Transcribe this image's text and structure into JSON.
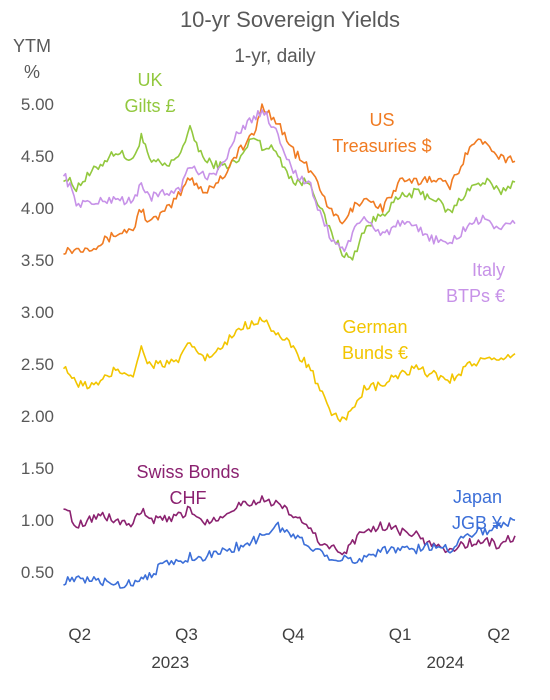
{
  "chart_data": {
    "type": "line",
    "title": "10-yr Sovereign Yields",
    "subtitle": "1-yr, daily",
    "ylabel": "YTM",
    "yunit": "%",
    "ylim": [
      0.3,
      5.0
    ],
    "yticks": [
      "5.00",
      "4.50",
      "4.00",
      "3.50",
      "3.00",
      "2.50",
      "2.00",
      "1.50",
      "1.00",
      "0.50"
    ],
    "ytick_values": [
      5.0,
      4.5,
      4.0,
      3.5,
      3.0,
      2.5,
      2.0,
      1.5,
      1.0,
      0.5
    ],
    "xlim": [
      "2023-04-28",
      "2024-05-24"
    ],
    "xticks": [
      {
        "label": "Q2",
        "date": "2023-05-15"
      },
      {
        "label": "Q3",
        "date": "2023-08-15"
      },
      {
        "label": "Q4",
        "date": "2023-11-15"
      },
      {
        "label": "Q1",
        "date": "2024-02-15"
      },
      {
        "label": "Q2",
        "date": "2024-05-10"
      }
    ],
    "years": [
      {
        "label": "2023",
        "date": "2023-08-01"
      },
      {
        "label": "2024",
        "date": "2024-03-25"
      }
    ],
    "grid": false,
    "legend": "inline labels",
    "series": [
      {
        "name": "UK Gilts £",
        "label_lines": [
          "UK",
          "Gilts £"
        ],
        "color": "#92c83e",
        "points": [
          [
            "2023-05-01",
            4.3
          ],
          [
            "2023-05-12",
            4.2
          ],
          [
            "2023-05-31",
            4.4
          ],
          [
            "2023-06-15",
            4.55
          ],
          [
            "2023-06-30",
            4.45
          ],
          [
            "2023-07-07",
            4.7
          ],
          [
            "2023-07-14",
            4.45
          ],
          [
            "2023-07-31",
            4.4
          ],
          [
            "2023-08-10",
            4.55
          ],
          [
            "2023-08-18",
            4.75
          ],
          [
            "2023-08-31",
            4.45
          ],
          [
            "2023-09-15",
            4.4
          ],
          [
            "2023-09-29",
            4.45
          ],
          [
            "2023-10-12",
            4.7
          ],
          [
            "2023-10-19",
            4.6
          ],
          [
            "2023-10-31",
            4.55
          ],
          [
            "2023-11-15",
            4.25
          ],
          [
            "2023-11-30",
            4.25
          ],
          [
            "2023-12-08",
            4.0
          ],
          [
            "2023-12-18",
            3.75
          ],
          [
            "2023-12-29",
            3.55
          ],
          [
            "2024-01-05",
            3.5
          ],
          [
            "2024-01-15",
            3.8
          ],
          [
            "2024-01-31",
            3.95
          ],
          [
            "2024-02-15",
            4.1
          ],
          [
            "2024-02-29",
            4.15
          ],
          [
            "2024-03-15",
            4.1
          ],
          [
            "2024-03-29",
            3.95
          ],
          [
            "2024-04-15",
            4.2
          ],
          [
            "2024-04-30",
            4.25
          ],
          [
            "2024-05-10",
            4.15
          ],
          [
            "2024-05-24",
            4.25
          ]
        ]
      },
      {
        "name": "US Treasuries $",
        "label_lines": [
          "US",
          "Treasuries $"
        ],
        "color": "#f07b22",
        "points": [
          [
            "2023-05-01",
            3.6
          ],
          [
            "2023-05-12",
            3.6
          ],
          [
            "2023-05-31",
            3.65
          ],
          [
            "2023-06-15",
            3.75
          ],
          [
            "2023-06-30",
            3.8
          ],
          [
            "2023-07-07",
            4.0
          ],
          [
            "2023-07-14",
            3.85
          ],
          [
            "2023-07-31",
            4.0
          ],
          [
            "2023-08-10",
            4.15
          ],
          [
            "2023-08-18",
            4.3
          ],
          [
            "2023-08-31",
            4.15
          ],
          [
            "2023-09-15",
            4.3
          ],
          [
            "2023-09-29",
            4.55
          ],
          [
            "2023-10-12",
            4.7
          ],
          [
            "2023-10-19",
            4.98
          ],
          [
            "2023-10-31",
            4.85
          ],
          [
            "2023-11-15",
            4.55
          ],
          [
            "2023-11-30",
            4.35
          ],
          [
            "2023-12-08",
            4.2
          ],
          [
            "2023-12-18",
            3.95
          ],
          [
            "2023-12-29",
            3.85
          ],
          [
            "2024-01-05",
            4.0
          ],
          [
            "2024-01-15",
            4.1
          ],
          [
            "2024-01-31",
            4.0
          ],
          [
            "2024-02-15",
            4.25
          ],
          [
            "2024-02-29",
            4.25
          ],
          [
            "2024-03-15",
            4.3
          ],
          [
            "2024-03-29",
            4.2
          ],
          [
            "2024-04-15",
            4.6
          ],
          [
            "2024-04-30",
            4.65
          ],
          [
            "2024-05-10",
            4.5
          ],
          [
            "2024-05-24",
            4.45
          ]
        ]
      },
      {
        "name": "Italy BTPs €",
        "label_lines": [
          "Italy",
          "BTPs €"
        ],
        "color": "#c792e8",
        "points": [
          [
            "2023-05-01",
            4.35
          ],
          [
            "2023-05-12",
            4.05
          ],
          [
            "2023-05-31",
            4.05
          ],
          [
            "2023-06-15",
            4.1
          ],
          [
            "2023-06-30",
            4.05
          ],
          [
            "2023-07-07",
            4.25
          ],
          [
            "2023-07-14",
            4.1
          ],
          [
            "2023-07-31",
            4.15
          ],
          [
            "2023-08-10",
            4.2
          ],
          [
            "2023-08-18",
            4.4
          ],
          [
            "2023-08-31",
            4.3
          ],
          [
            "2023-09-15",
            4.4
          ],
          [
            "2023-09-29",
            4.75
          ],
          [
            "2023-10-12",
            4.85
          ],
          [
            "2023-10-19",
            4.95
          ],
          [
            "2023-10-31",
            4.75
          ],
          [
            "2023-11-15",
            4.35
          ],
          [
            "2023-11-30",
            4.2
          ],
          [
            "2023-12-08",
            3.95
          ],
          [
            "2023-12-18",
            3.7
          ],
          [
            "2023-12-29",
            3.6
          ],
          [
            "2024-01-05",
            3.75
          ],
          [
            "2024-01-15",
            3.9
          ],
          [
            "2024-01-31",
            3.75
          ],
          [
            "2024-02-15",
            3.85
          ],
          [
            "2024-02-29",
            3.8
          ],
          [
            "2024-03-15",
            3.7
          ],
          [
            "2024-03-29",
            3.65
          ],
          [
            "2024-04-15",
            3.85
          ],
          [
            "2024-04-30",
            3.9
          ],
          [
            "2024-05-10",
            3.8
          ],
          [
            "2024-05-24",
            3.85
          ]
        ]
      },
      {
        "name": "German Bunds €",
        "label_lines": [
          "German",
          "Bunds €"
        ],
        "color": "#f2c500",
        "points": [
          [
            "2023-05-01",
            2.5
          ],
          [
            "2023-05-12",
            2.3
          ],
          [
            "2023-05-31",
            2.3
          ],
          [
            "2023-06-15",
            2.45
          ],
          [
            "2023-06-30",
            2.4
          ],
          [
            "2023-07-07",
            2.65
          ],
          [
            "2023-07-14",
            2.5
          ],
          [
            "2023-07-31",
            2.5
          ],
          [
            "2023-08-10",
            2.55
          ],
          [
            "2023-08-18",
            2.7
          ],
          [
            "2023-08-31",
            2.55
          ],
          [
            "2023-09-15",
            2.65
          ],
          [
            "2023-09-29",
            2.85
          ],
          [
            "2023-10-12",
            2.9
          ],
          [
            "2023-10-19",
            2.95
          ],
          [
            "2023-10-31",
            2.8
          ],
          [
            "2023-11-15",
            2.65
          ],
          [
            "2023-11-30",
            2.45
          ],
          [
            "2023-12-08",
            2.25
          ],
          [
            "2023-12-18",
            2.0
          ],
          [
            "2023-12-29",
            1.95
          ],
          [
            "2024-01-05",
            2.1
          ],
          [
            "2024-01-15",
            2.25
          ],
          [
            "2024-01-31",
            2.3
          ],
          [
            "2024-02-15",
            2.4
          ],
          [
            "2024-02-29",
            2.45
          ],
          [
            "2024-03-15",
            2.4
          ],
          [
            "2024-03-29",
            2.35
          ],
          [
            "2024-04-15",
            2.5
          ],
          [
            "2024-04-30",
            2.55
          ],
          [
            "2024-05-10",
            2.5
          ],
          [
            "2024-05-24",
            2.6
          ]
        ]
      },
      {
        "name": "Swiss Bonds CHF",
        "label_lines": [
          "Swiss Bonds",
          "CHF"
        ],
        "color": "#8b2270",
        "points": [
          [
            "2023-05-01",
            1.15
          ],
          [
            "2023-05-12",
            0.95
          ],
          [
            "2023-05-31",
            1.05
          ],
          [
            "2023-06-15",
            1.0
          ],
          [
            "2023-06-30",
            0.95
          ],
          [
            "2023-07-07",
            1.1
          ],
          [
            "2023-07-14",
            1.0
          ],
          [
            "2023-07-31",
            1.0
          ],
          [
            "2023-08-10",
            1.05
          ],
          [
            "2023-08-18",
            1.1
          ],
          [
            "2023-08-31",
            0.98
          ],
          [
            "2023-09-15",
            1.05
          ],
          [
            "2023-09-29",
            1.15
          ],
          [
            "2023-10-12",
            1.18
          ],
          [
            "2023-10-19",
            1.2
          ],
          [
            "2023-10-31",
            1.15
          ],
          [
            "2023-11-15",
            1.05
          ],
          [
            "2023-11-30",
            0.9
          ],
          [
            "2023-12-08",
            0.8
          ],
          [
            "2023-12-18",
            0.72
          ],
          [
            "2023-12-29",
            0.7
          ],
          [
            "2024-01-05",
            0.78
          ],
          [
            "2024-01-15",
            0.9
          ],
          [
            "2024-01-31",
            0.95
          ],
          [
            "2024-02-15",
            0.9
          ],
          [
            "2024-02-29",
            0.85
          ],
          [
            "2024-03-15",
            0.75
          ],
          [
            "2024-03-29",
            0.72
          ],
          [
            "2024-04-15",
            0.78
          ],
          [
            "2024-04-30",
            0.8
          ],
          [
            "2024-05-10",
            0.75
          ],
          [
            "2024-05-24",
            0.85
          ]
        ]
      },
      {
        "name": "Japan JGB ¥",
        "label_lines": [
          "Japan",
          "JGB ¥"
        ],
        "color": "#3c6fd8",
        "points": [
          [
            "2023-05-01",
            0.42
          ],
          [
            "2023-05-12",
            0.42
          ],
          [
            "2023-05-31",
            0.42
          ],
          [
            "2023-06-15",
            0.38
          ],
          [
            "2023-06-30",
            0.4
          ],
          [
            "2023-07-07",
            0.45
          ],
          [
            "2023-07-14",
            0.48
          ],
          [
            "2023-07-31",
            0.6
          ],
          [
            "2023-08-10",
            0.6
          ],
          [
            "2023-08-18",
            0.65
          ],
          [
            "2023-08-31",
            0.65
          ],
          [
            "2023-09-15",
            0.7
          ],
          [
            "2023-09-29",
            0.75
          ],
          [
            "2023-10-12",
            0.8
          ],
          [
            "2023-10-19",
            0.85
          ],
          [
            "2023-10-31",
            0.95
          ],
          [
            "2023-11-15",
            0.85
          ],
          [
            "2023-11-30",
            0.75
          ],
          [
            "2023-12-08",
            0.7
          ],
          [
            "2023-12-18",
            0.65
          ],
          [
            "2023-12-29",
            0.62
          ],
          [
            "2024-01-05",
            0.6
          ],
          [
            "2024-01-15",
            0.65
          ],
          [
            "2024-01-31",
            0.72
          ],
          [
            "2024-02-15",
            0.72
          ],
          [
            "2024-02-29",
            0.72
          ],
          [
            "2024-03-15",
            0.75
          ],
          [
            "2024-03-29",
            0.73
          ],
          [
            "2024-04-15",
            0.88
          ],
          [
            "2024-04-30",
            0.9
          ],
          [
            "2024-05-10",
            0.95
          ],
          [
            "2024-05-24",
            1.0
          ]
        ]
      }
    ]
  }
}
